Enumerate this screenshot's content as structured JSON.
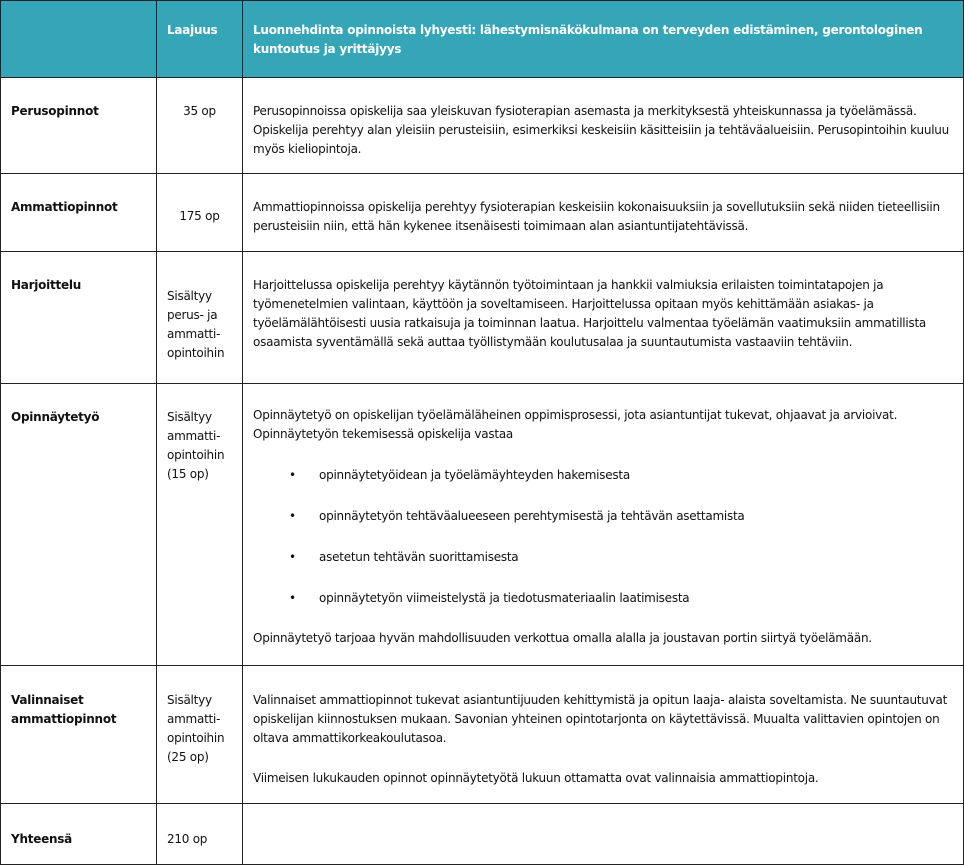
{
  "header": {
    "col1": "",
    "col2": "Laajuus",
    "col3": "Luonnehdinta opinnoista lyhyesti: lähestymisnäkökulmana on terveyden edistäminen, gerontologinen kuntoutus ja yrittäjyys"
  },
  "colors": {
    "header_bg": "#35a5b8",
    "header_text": "#ffffff"
  },
  "rows": [
    {
      "name": "Perusopinnot",
      "scope": "35 op",
      "desc": "Perusopinnoissa opiskelija saa yleiskuvan fysioterapian asemasta ja merkityksestä yhteiskunnassa ja työelämässä. Opiskelija perehtyy alan yleisiin perusteisiin, esimerkiksi keskeisiin käsitteisiin ja tehtäväalueisiin. Perusopintoihin kuuluu myös kieliopintoja."
    },
    {
      "name": "Ammattiopinnot",
      "scope": "175 op",
      "desc": "Ammattiopinnoissa opiskelija perehtyy fysioterapian keskeisiin kokonaisuuksiin ja sovellutuksiin sekä niiden tieteellisiin perusteisiin niin, että hän kykenee itsenäisesti toimimaan alan asiantuntijatehtävissä."
    },
    {
      "name": "Harjoittelu",
      "scope": "Sisältyy perus- ja ammatti-opintoihin",
      "desc": "Harjoittelussa opiskelija perehtyy käytännön työtoimintaan ja hankkii valmiuksia erilaisten toimintatapojen ja työmenetelmien valintaan, käyttöön ja soveltamiseen.  Harjoittelussa opitaan myös kehittämään asiakas- ja työelämälähtöisesti uusia ratkaisuja ja toiminnan laatua.  Harjoittelu valmentaa työelämän vaatimuksiin ammatillista osaamista syventämällä sekä auttaa työllistymään koulutusalaa ja suuntautumista vastaaviin tehtäviin."
    },
    {
      "name": "Opinnäytetyö",
      "scope": "Sisältyy ammatti-opintoihin (15 op)",
      "desc": "Opinnäytetyö on opiskelijan työelämäläheinen oppimisprosessi, jota asiantuntijat tukevat, ohjaavat ja arvioivat. Opinnäytetyön tekemisessä opiskelija vastaa",
      "bullets": [
        "opinnäytetyöidean ja työelämäyhteyden hakemisesta",
        "opinnäytetyön tehtäväalueeseen perehtymisestä ja tehtävän asettamista",
        "asetetun tehtävän suorittamisesta",
        "opinnäytetyön viimeistelystä ja tiedotusmateriaalin laatimisesta"
      ],
      "desc2": "Opinnäytetyö tarjoaa hyvän mahdollisuuden verkottua omalla alalla ja joustavan portin siirtyä työelämään."
    },
    {
      "name": "Valinnaiset ammattiopinnot",
      "scope": "Sisältyy ammatti-opintoihin (25 op)",
      "desc": "Valinnaiset ammattiopinnot tukevat asiantuntijuuden kehittymistä ja opitun laaja- alaista soveltamista. Ne suuntautuvat opiskelijan kiinnostuksen mukaan. Savonian yhteinen opintotarjonta on käytettävissä. Muualta valittavien opintojen on oltava ammattikorkeakoulutasoa.",
      "desc2": "Viimeisen lukukauden opinnot opinnäytetyötä lukuun ottamatta ovat valinnaisia ammattiopintoja."
    },
    {
      "name": "Yhteensä",
      "scope": "210 op",
      "desc": ""
    }
  ]
}
